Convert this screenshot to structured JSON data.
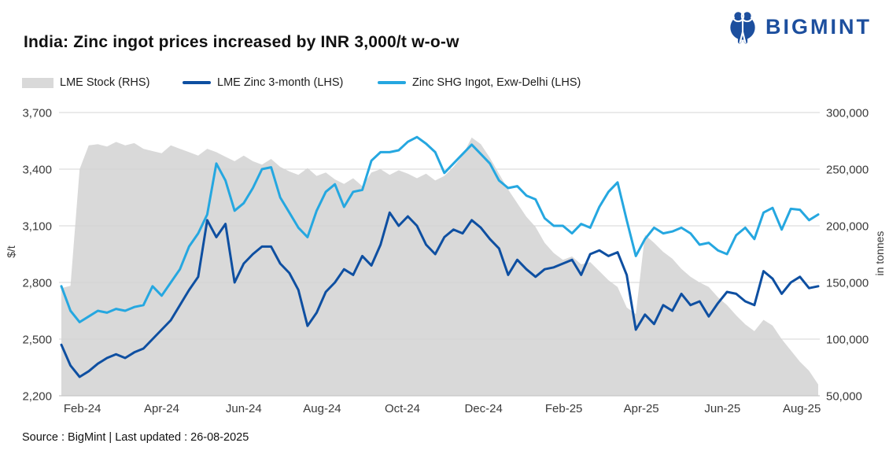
{
  "header": {
    "title": "India: Zinc ingot prices increased by INR 3,000/t w-o-w",
    "brand": "BIGMINT",
    "brand_color": "#1d4f9e"
  },
  "legend": [
    {
      "label": "LME Stock (RHS)",
      "type": "area",
      "color": "#d9d9d9"
    },
    {
      "label": "LME Zinc 3-month (LHS)",
      "type": "line",
      "color": "#0e4fa1"
    },
    {
      "label": "Zinc SHG Ingot, Exw-Delhi (LHS)",
      "type": "line",
      "color": "#25a7e0"
    }
  ],
  "footer": {
    "source": "Source : BigMint | Last updated : 26-08-2025"
  },
  "chart_data": {
    "type": "line",
    "title": "India: Zinc ingot prices increased by INR 3,000/t w-o-w",
    "x_tick_labels": [
      "Feb-24",
      "Apr-24",
      "Jun-24",
      "Aug-24",
      "Oct-24",
      "Dec-24",
      "Feb-25",
      "Apr-25",
      "Jun-25",
      "Aug-25"
    ],
    "x_tick_indices": [
      2.3,
      11.0,
      20.0,
      28.6,
      37.4,
      46.3,
      55.1,
      63.6,
      72.5,
      81.2
    ],
    "grid": true,
    "legend_position": "top-left",
    "y_left": {
      "title": "$/t",
      "min": 2200,
      "max": 3700,
      "tick_labels": [
        "3,700",
        "3,400",
        "3,100",
        "2,800",
        "2,500",
        "2,200"
      ]
    },
    "y_right": {
      "title": "in tonnes",
      "min": 50000,
      "max": 300000,
      "tick_labels": [
        "300,000",
        "250,000",
        "200,000",
        "150,000",
        "100,000",
        "50,000"
      ]
    },
    "series": [
      {
        "name": "LME Stock (RHS)",
        "axis": "right",
        "kind": "area",
        "color": "#d9d9d9",
        "values": [
          145000,
          147000,
          250000,
          271000,
          272000,
          270000,
          274000,
          271000,
          273000,
          268000,
          266000,
          264000,
          271000,
          268000,
          265000,
          262000,
          268000,
          265000,
          261000,
          257000,
          262000,
          257000,
          254000,
          259000,
          252000,
          248000,
          245000,
          251000,
          244000,
          247000,
          241000,
          237000,
          242000,
          235000,
          247000,
          250000,
          245000,
          249000,
          246000,
          242000,
          246000,
          240000,
          244000,
          252000,
          262000,
          278000,
          272000,
          260000,
          246000,
          232000,
          220000,
          208000,
          199000,
          185000,
          176000,
          170000,
          173000,
          166000,
          168000,
          160000,
          152000,
          146000,
          128000,
          122000,
          192000,
          185000,
          177000,
          171000,
          162000,
          155000,
          150000,
          146000,
          137000,
          130000,
          121000,
          113000,
          107000,
          117000,
          112000,
          100000,
          90000,
          80000,
          72000,
          60000
        ]
      },
      {
        "name": "LME Zinc 3-month (LHS)",
        "axis": "left",
        "kind": "line",
        "color": "#0e4fa1",
        "values": [
          2470,
          2360,
          2300,
          2330,
          2370,
          2400,
          2420,
          2400,
          2430,
          2450,
          2500,
          2550,
          2600,
          2680,
          2760,
          2830,
          3130,
          3040,
          3110,
          2800,
          2900,
          2950,
          2990,
          2990,
          2900,
          2850,
          2760,
          2570,
          2640,
          2750,
          2800,
          2870,
          2840,
          2940,
          2890,
          3000,
          3170,
          3100,
          3150,
          3100,
          3000,
          2950,
          3040,
          3080,
          3060,
          3130,
          3090,
          3030,
          2980,
          2840,
          2920,
          2870,
          2830,
          2870,
          2880,
          2900,
          2920,
          2840,
          2950,
          2970,
          2940,
          2960,
          2840,
          2550,
          2630,
          2580,
          2680,
          2650,
          2740,
          2680,
          2700,
          2620,
          2690,
          2750,
          2740,
          2700,
          2680,
          2860,
          2820,
          2740,
          2800,
          2830,
          2770,
          2780
        ]
      },
      {
        "name": "Zinc SHG Ingot, Exw-Delhi (LHS)",
        "axis": "left",
        "kind": "line",
        "color": "#25a7e0",
        "values": [
          2780,
          2650,
          2590,
          2620,
          2650,
          2640,
          2660,
          2650,
          2670,
          2680,
          2780,
          2730,
          2800,
          2870,
          2990,
          3060,
          3160,
          3430,
          3340,
          3180,
          3220,
          3300,
          3400,
          3410,
          3250,
          3170,
          3090,
          3040,
          3180,
          3280,
          3320,
          3200,
          3280,
          3290,
          3445,
          3490,
          3490,
          3500,
          3545,
          3570,
          3535,
          3490,
          3380,
          3430,
          3480,
          3530,
          3480,
          3430,
          3340,
          3300,
          3310,
          3260,
          3240,
          3140,
          3100,
          3100,
          3060,
          3110,
          3090,
          3200,
          3280,
          3330,
          3130,
          2940,
          3030,
          3090,
          3060,
          3070,
          3090,
          3060,
          3000,
          3010,
          2970,
          2950,
          3050,
          3090,
          3030,
          3170,
          3195,
          3080,
          3190,
          3185,
          3130,
          3160
        ]
      }
    ]
  }
}
